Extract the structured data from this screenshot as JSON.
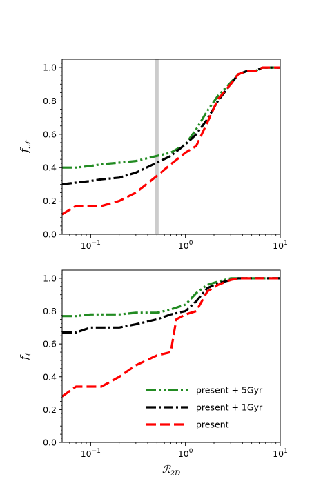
{
  "colors": {
    "green": "#228b22",
    "black": "#000000",
    "red": "#ff0000",
    "vline": "#cccccc"
  },
  "legend": {
    "placement": "lower-right",
    "entries": [
      {
        "series": "green",
        "label": "present + 5Gyr"
      },
      {
        "series": "black",
        "label": "present + 1Gyr"
      },
      {
        "series": "red",
        "label": "present"
      }
    ]
  },
  "chart_data": [
    {
      "type": "line",
      "xscale": "log",
      "xlim": [
        0.05,
        10
      ],
      "ylim": [
        0.0,
        1.05
      ],
      "xlabel": "",
      "ylabel": "fN",
      "ylabel_main": "f",
      "ylabel_sub": "𝒩",
      "xticks": [
        0.1,
        1,
        10
      ],
      "xtick_labels": [
        {
          "base": "10",
          "exp": "−1"
        },
        {
          "base": "10",
          "exp": "0"
        },
        {
          "base": "10",
          "exp": "1"
        }
      ],
      "yticks": [
        "0.0",
        "0.2",
        "0.4",
        "0.6",
        "0.8",
        "1.0"
      ],
      "vline": 0.5,
      "series": [
        {
          "key": "green",
          "name": "present + 5Gyr",
          "style": "dashdotdot",
          "x": [
            0.05,
            0.07,
            0.1,
            0.13,
            0.2,
            0.3,
            0.5,
            0.7,
            1.0,
            1.3,
            1.7,
            2.2,
            3.0,
            3.6,
            4.5,
            5.5,
            6.5,
            8,
            10
          ],
          "y": [
            0.4,
            0.4,
            0.41,
            0.42,
            0.43,
            0.44,
            0.47,
            0.49,
            0.54,
            0.63,
            0.74,
            0.83,
            0.91,
            0.96,
            0.98,
            0.98,
            1.0,
            1.0,
            1.0
          ]
        },
        {
          "key": "black",
          "name": "present + 1Gyr",
          "style": "dashdot",
          "x": [
            0.05,
            0.07,
            0.1,
            0.13,
            0.2,
            0.3,
            0.5,
            0.7,
            1.0,
            1.3,
            1.7,
            2.2,
            3.0,
            3.6,
            4.5,
            5.5,
            6.5,
            8,
            10
          ],
          "y": [
            0.3,
            0.31,
            0.32,
            0.33,
            0.34,
            0.37,
            0.43,
            0.47,
            0.54,
            0.6,
            0.69,
            0.8,
            0.9,
            0.96,
            0.98,
            0.98,
            1.0,
            1.0,
            1.0
          ]
        },
        {
          "key": "red",
          "name": "present",
          "style": "dashed",
          "x": [
            0.05,
            0.07,
            0.1,
            0.13,
            0.2,
            0.3,
            0.5,
            0.7,
            1.0,
            1.3,
            1.7,
            2.2,
            3.0,
            3.6,
            4.5,
            5.5,
            6.5,
            8,
            10
          ],
          "y": [
            0.12,
            0.17,
            0.17,
            0.17,
            0.2,
            0.25,
            0.35,
            0.42,
            0.49,
            0.53,
            0.67,
            0.81,
            0.9,
            0.96,
            0.98,
            0.98,
            1.0,
            1.0,
            1.0
          ]
        }
      ]
    },
    {
      "type": "line",
      "xscale": "log",
      "xlim": [
        0.05,
        10
      ],
      "ylim": [
        0.0,
        1.05
      ],
      "xlabel": "R2D",
      "xlabel_main": "ℛ",
      "xlabel_sub": "2D",
      "ylabel": "fl",
      "ylabel_main": "f",
      "ylabel_sub": "ℓ",
      "xticks": [
        0.1,
        1,
        10
      ],
      "xtick_labels": [
        {
          "base": "10",
          "exp": "−1"
        },
        {
          "base": "10",
          "exp": "0"
        },
        {
          "base": "10",
          "exp": "1"
        }
      ],
      "yticks": [
        "0.0",
        "0.2",
        "0.4",
        "0.6",
        "0.8",
        "1.0"
      ],
      "series": [
        {
          "key": "green",
          "name": "present + 5Gyr",
          "style": "dashdotdot",
          "x": [
            0.05,
            0.07,
            0.1,
            0.13,
            0.2,
            0.3,
            0.5,
            0.7,
            1.0,
            1.3,
            1.7,
            2.2,
            3.0,
            3.6,
            4.5,
            6,
            10
          ],
          "y": [
            0.77,
            0.77,
            0.78,
            0.78,
            0.78,
            0.79,
            0.79,
            0.81,
            0.84,
            0.91,
            0.96,
            0.98,
            1.0,
            1.0,
            1.0,
            1.0,
            1.0
          ]
        },
        {
          "key": "black",
          "name": "present + 1Gyr",
          "style": "dashdot",
          "x": [
            0.05,
            0.07,
            0.1,
            0.13,
            0.2,
            0.3,
            0.5,
            0.7,
            1.0,
            1.3,
            1.7,
            2.2,
            3.0,
            3.6,
            4.5,
            6,
            10
          ],
          "y": [
            0.67,
            0.67,
            0.7,
            0.7,
            0.7,
            0.72,
            0.75,
            0.78,
            0.8,
            0.86,
            0.94,
            0.97,
            0.99,
            1.0,
            1.0,
            1.0,
            1.0
          ]
        },
        {
          "key": "red",
          "name": "present",
          "style": "dashed",
          "x": [
            0.05,
            0.07,
            0.1,
            0.13,
            0.2,
            0.3,
            0.5,
            0.7,
            0.8,
            1.0,
            1.3,
            1.7,
            2.2,
            3.0,
            3.6,
            4.5,
            6,
            10
          ],
          "y": [
            0.28,
            0.34,
            0.34,
            0.34,
            0.4,
            0.47,
            0.53,
            0.55,
            0.75,
            0.78,
            0.8,
            0.92,
            0.96,
            0.99,
            1.0,
            1.0,
            1.0,
            1.0
          ]
        }
      ]
    }
  ]
}
